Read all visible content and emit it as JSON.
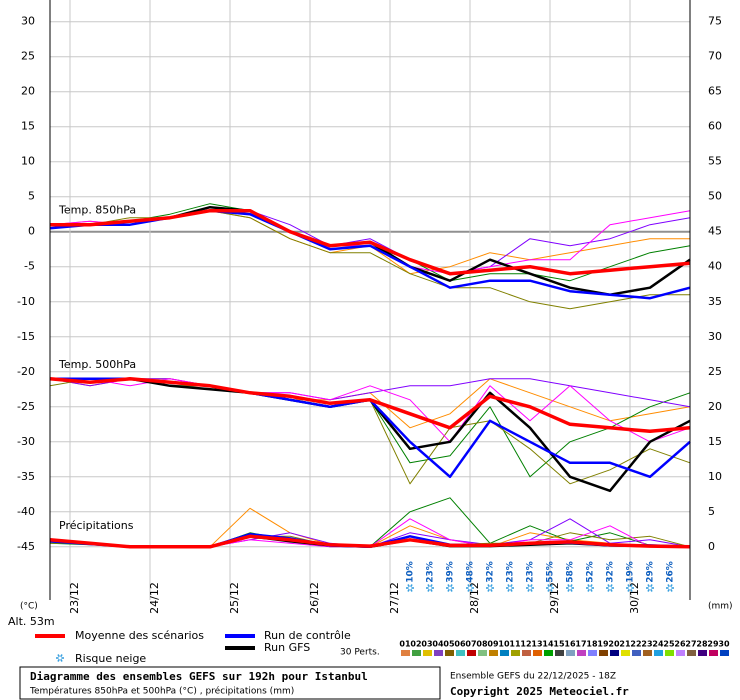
{
  "chart_data": {
    "type": "line",
    "title": "Diagramme des ensembles GEFS sur 192h pour Istanbul",
    "subtitle": "Températures 850hPa et 500hPa (°C) , précipitations (mm)",
    "run_label": "Ensemble GEFS du 22/12/2025 - 18Z",
    "copyright": "Copyright 2025 Meteociel.fr",
    "y_unit": "(°C)",
    "y2_unit": "(mm)",
    "altitude": "Alt. 53m",
    "grid": true,
    "x": [
      0,
      12,
      24,
      36,
      48,
      60,
      72,
      84,
      96,
      108,
      120,
      132,
      144,
      156,
      168,
      180,
      192
    ],
    "xlim": [
      0,
      192
    ],
    "xticks": [
      {
        "value": 6,
        "label": "23/12"
      },
      {
        "value": 30,
        "label": "24/12"
      },
      {
        "value": 54,
        "label": "25/12"
      },
      {
        "value": 78,
        "label": "26/12"
      },
      {
        "value": 102,
        "label": "27/12"
      },
      {
        "value": 126,
        "label": "28/12"
      },
      {
        "value": 150,
        "label": "29/12"
      },
      {
        "value": 174,
        "label": "30/12"
      }
    ],
    "ylim": [
      -52.6,
      33.1
    ],
    "yticks": [
      -45,
      -40,
      -35,
      -30,
      -25,
      -20,
      -15,
      -10,
      -5,
      0,
      5,
      10,
      15,
      20,
      25,
      30
    ],
    "y2lim": [
      -7.6,
      78.1
    ],
    "y2ticks": [
      0,
      5,
      10,
      15,
      20,
      25,
      30,
      35,
      40,
      45,
      50,
      55,
      60,
      65,
      70,
      75
    ],
    "legend": [
      {
        "name": "Moyenne des scénarios",
        "color": "#ff0000"
      },
      {
        "name": "Run de contrôle",
        "color": "#0000ff"
      },
      {
        "name": "Run GFS",
        "color": "#000000"
      }
    ],
    "panels": [
      {
        "label": "Temp. 850hPa",
        "series": [
          {
            "color": "#ff8c00",
            "values": [
              1,
              1.5,
              1,
              2,
              3,
              2,
              -1,
              -3,
              -2,
              -6,
              -5,
              -3,
              -4,
              -3,
              -2,
              -1,
              -1
            ]
          },
          {
            "color": "#008000",
            "values": [
              1,
              1,
              1.5,
              2.5,
              4,
              3,
              0,
              -2,
              -2,
              -4,
              -7,
              -6,
              -6,
              -7,
              -5,
              -3,
              -2
            ]
          },
          {
            "color": "#8000ff",
            "values": [
              0.5,
              1,
              1,
              2,
              3,
              3,
              1,
              -2,
              -1,
              -4,
              -6,
              -5,
              -1,
              -2,
              -1,
              1,
              2
            ]
          },
          {
            "color": "#808000",
            "values": [
              1,
              1,
              2,
              2,
              3,
              2,
              -1,
              -3,
              -3,
              -6,
              -8,
              -8,
              -10,
              -11,
              -10,
              -9,
              -9
            ]
          },
          {
            "color": "#ff00ff",
            "values": [
              1,
              1.5,
              1,
              2,
              3.5,
              3,
              0,
              -2,
              -2,
              -5,
              -6,
              -5,
              -4,
              -4,
              1,
              2,
              3
            ]
          },
          {
            "color": "#000000",
            "values": [
              1,
              1,
              1.5,
              2,
              3.5,
              3,
              0,
              -2,
              -1.5,
              -5,
              -7,
              -4,
              -6,
              -8,
              -9,
              -8,
              -4
            ]
          },
          {
            "color": "#0000ff",
            "values": [
              0.5,
              1,
              1,
              2,
              3,
              2.5,
              0,
              -2.5,
              -2,
              -5,
              -8,
              -7,
              -7,
              -8.5,
              -9,
              -9.5,
              -8
            ]
          },
          {
            "color": "#ff0000",
            "values": [
              1,
              1,
              1.5,
              2,
              3,
              3,
              0,
              -2,
              -1.5,
              -4,
              -6,
              -5.5,
              -5,
              -6,
              -5.5,
              -5,
              -4.5
            ]
          }
        ]
      },
      {
        "label": "Temp. 500hPa",
        "series": [
          {
            "color": "#ff8c00",
            "values": [
              -21,
              -22,
              -21,
              -21,
              -22,
              -23,
              -24,
              -24,
              -23,
              -28,
              -26,
              -21,
              -23,
              -25,
              -27,
              -26,
              -25
            ]
          },
          {
            "color": "#008000",
            "values": [
              -21,
              -21,
              -21,
              -22,
              -22,
              -23,
              -24,
              -25,
              -24,
              -33,
              -32,
              -25,
              -35,
              -30,
              -28,
              -25,
              -23
            ]
          },
          {
            "color": "#8000ff",
            "values": [
              -21,
              -22,
              -21,
              -21,
              -22,
              -23,
              -23,
              -24,
              -23,
              -22,
              -22,
              -21,
              -21,
              -22,
              -23,
              -24,
              -25
            ]
          },
          {
            "color": "#808000",
            "values": [
              -22,
              -21,
              -21,
              -22,
              -22,
              -23,
              -24,
              -25,
              -24,
              -36,
              -28,
              -27,
              -31,
              -36,
              -34,
              -31,
              -33
            ]
          },
          {
            "color": "#ff00ff",
            "values": [
              -21,
              -21,
              -22,
              -21,
              -22,
              -23,
              -23,
              -24,
              -22,
              -24,
              -30,
              -22,
              -27,
              -22,
              -27,
              -30,
              -28
            ]
          },
          {
            "color": "#000000",
            "values": [
              -21,
              -21.5,
              -21,
              -22,
              -22.5,
              -23,
              -24,
              -25,
              -24,
              -31,
              -30,
              -23,
              -28,
              -35,
              -37,
              -30,
              -27
            ]
          },
          {
            "color": "#0000ff",
            "values": [
              -21,
              -21,
              -21,
              -21.5,
              -22,
              -23,
              -24,
              -25,
              -24,
              -30,
              -35,
              -27,
              -30,
              -33,
              -33,
              -35,
              -30
            ]
          },
          {
            "color": "#ff0000",
            "values": [
              -21,
              -21.5,
              -21,
              -21.5,
              -22,
              -23,
              -23.5,
              -24.5,
              -24,
              -26,
              -28,
              -23.5,
              -25,
              -27.5,
              -28,
              -28.5,
              -28
            ]
          }
        ]
      },
      {
        "label": "Précipitations",
        "series": [
          {
            "color": "#ff8c00",
            "axis": "y2",
            "values": [
              1,
              0.5,
              0,
              0,
              0,
              5.5,
              2,
              0.3,
              0,
              3,
              1,
              0,
              2,
              1,
              0.5,
              0,
              0
            ]
          },
          {
            "color": "#008000",
            "axis": "y2",
            "values": [
              0.5,
              0.3,
              0,
              0,
              0,
              2,
              1,
              0,
              0,
              5,
              7,
              0.5,
              3,
              0.8,
              2,
              0.2,
              0
            ]
          },
          {
            "color": "#8000ff",
            "axis": "y2",
            "values": [
              1,
              0.5,
              0,
              0,
              0,
              1,
              2,
              0.5,
              0,
              2,
              1,
              0.3,
              1,
              4,
              0.5,
              1,
              0
            ]
          },
          {
            "color": "#808000",
            "axis": "y2",
            "values": [
              0.5,
              0.5,
              0,
              0,
              0,
              1.5,
              1.5,
              0.2,
              0,
              1.5,
              0.3,
              0.5,
              0.5,
              2,
              1,
              1.5,
              0
            ]
          },
          {
            "color": "#ff00ff",
            "axis": "y2",
            "values": [
              1,
              0.4,
              0,
              0,
              0,
              1,
              0.5,
              0,
              0,
              4,
              1,
              0,
              1,
              1,
              3,
              0,
              0
            ]
          },
          {
            "color": "#000000",
            "axis": "y2",
            "values": [
              0.8,
              0.5,
              0,
              0,
              0,
              1.5,
              0.8,
              0.2,
              0,
              1,
              0.1,
              0.1,
              0.3,
              0.5,
              0.2,
              0.1,
              0
            ]
          },
          {
            "color": "#0000ff",
            "axis": "y2",
            "values": [
              0.8,
              0.4,
              0,
              0,
              0,
              1.8,
              1.2,
              0.2,
              0,
              1.5,
              0.3,
              0.2,
              0.5,
              0.6,
              0.2,
              0.2,
              0
            ]
          },
          {
            "color": "#ff0000",
            "axis": "y2",
            "values": [
              1,
              0.5,
              0,
              0,
              0,
              1.5,
              1,
              0.3,
              0.1,
              1,
              0.2,
              0.2,
              0.5,
              0.7,
              0.3,
              0.1,
              0
            ]
          }
        ]
      }
    ],
    "snow_risk": {
      "label": "Risque neige",
      "x": [
        108,
        114,
        120,
        126,
        132,
        138,
        144,
        150,
        156,
        162,
        168,
        174,
        180,
        186
      ],
      "values": [
        10,
        23,
        39,
        48,
        32,
        23,
        23,
        55,
        58,
        52,
        32,
        19,
        29,
        26
      ],
      "value_labels": [
        "10%",
        "23%",
        "39%",
        "48%",
        "32%",
        "23%",
        "23%",
        "55%",
        "58%",
        "52%",
        "32%",
        "19%",
        "29%",
        "26%"
      ]
    },
    "members_label": "30 Perts.",
    "members": [
      {
        "name": "01",
        "color": "#e08040"
      },
      {
        "name": "02",
        "color": "#40a040"
      },
      {
        "name": "03",
        "color": "#e0c000"
      },
      {
        "name": "04",
        "color": "#8040c0"
      },
      {
        "name": "05",
        "color": "#806000"
      },
      {
        "name": "06",
        "color": "#40c0c0"
      },
      {
        "name": "07",
        "color": "#c00000"
      },
      {
        "name": "08",
        "color": "#80c080"
      },
      {
        "name": "09",
        "color": "#c08000"
      },
      {
        "name": "10",
        "color": "#0080c0"
      },
      {
        "name": "11",
        "color": "#a0a000"
      },
      {
        "name": "12",
        "color": "#c06040"
      },
      {
        "name": "13",
        "color": "#e06000"
      },
      {
        "name": "14",
        "color": "#00a000"
      },
      {
        "name": "15",
        "color": "#404040"
      },
      {
        "name": "16",
        "color": "#80a0c0"
      },
      {
        "name": "17",
        "color": "#c040c0"
      },
      {
        "name": "18",
        "color": "#8080ff"
      },
      {
        "name": "19",
        "color": "#804000"
      },
      {
        "name": "20",
        "color": "#000080"
      },
      {
        "name": "21",
        "color": "#e0e000"
      },
      {
        "name": "22",
        "color": "#4060c0"
      },
      {
        "name": "23",
        "color": "#a06020"
      },
      {
        "name": "24",
        "color": "#20a0e0"
      },
      {
        "name": "25",
        "color": "#80e000"
      },
      {
        "name": "26",
        "color": "#c080ff"
      },
      {
        "name": "27",
        "color": "#806040"
      },
      {
        "name": "28",
        "color": "#400080"
      },
      {
        "name": "29",
        "color": "#c00060"
      },
      {
        "name": "30",
        "color": "#0040c0"
      }
    ]
  }
}
